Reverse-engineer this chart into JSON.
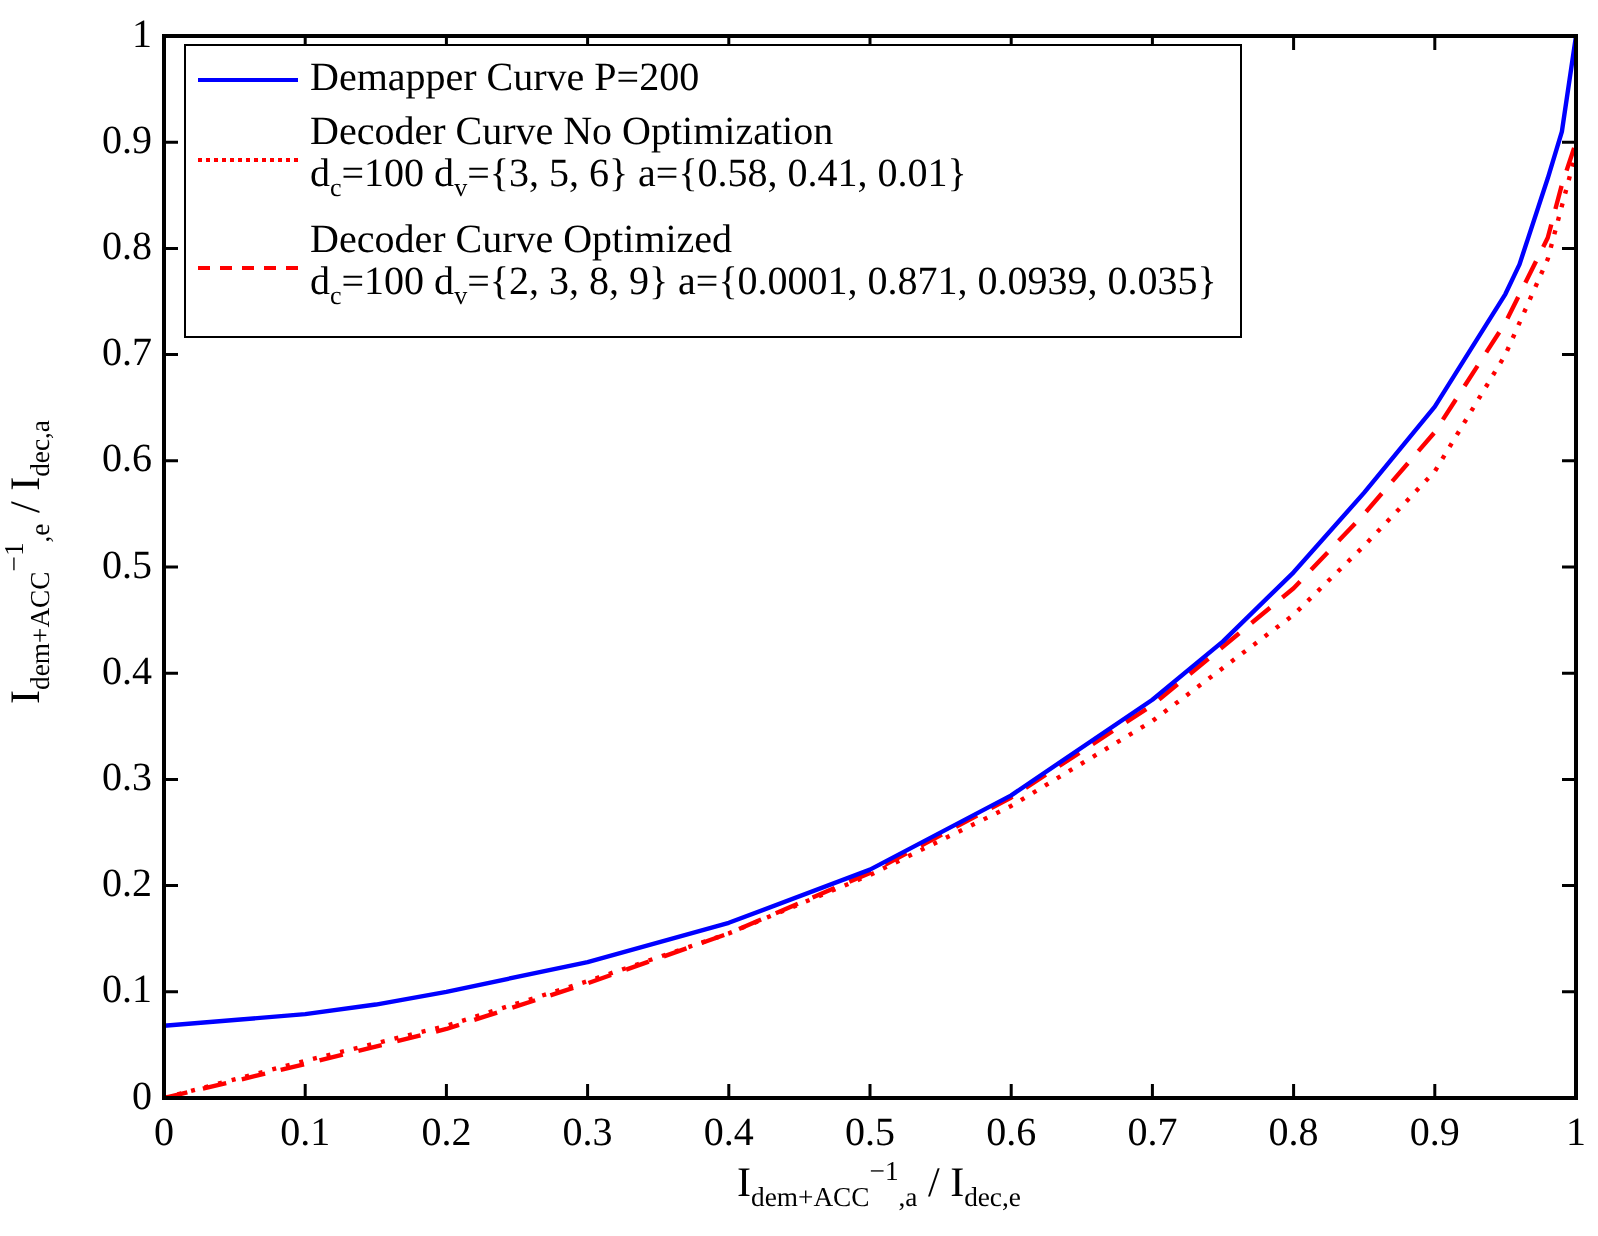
{
  "chart_data": {
    "type": "line",
    "xlabel": "I$_{dem+ACC}$$^{−1}$$_{,a}$ / I$_{dec,e}$",
    "ylabel": "I$_{dem+ACC}$$^{−1}$$_{,e}$ / I$_{dec,a}$",
    "xlim": [
      0,
      1
    ],
    "ylim": [
      0,
      1
    ],
    "xticks": [
      0,
      0.1,
      0.2,
      0.3,
      0.4,
      0.5,
      0.6,
      0.7,
      0.8,
      0.9,
      1
    ],
    "yticks": [
      0,
      0.1,
      0.2,
      0.3,
      0.4,
      0.5,
      0.6,
      0.7,
      0.8,
      0.9,
      1
    ],
    "legend": "top left",
    "marker": "none",
    "series": [
      {
        "name": "Demapper Curve P=200",
        "color": "#0000ff",
        "line_style": "solid",
        "x": [
          0,
          0.1,
          0.15,
          0.2,
          0.3,
          0.4,
          0.5,
          0.6,
          0.7,
          0.75,
          0.8,
          0.85,
          0.9,
          0.95,
          0.96,
          0.98,
          0.99,
          1
        ],
        "values": [
          0.068,
          0.079,
          0.088,
          0.1,
          0.128,
          0.165,
          0.215,
          0.285,
          0.375,
          0.43,
          0.495,
          0.57,
          0.651,
          0.757,
          0.785,
          0.866,
          0.91,
          1
        ]
      },
      {
        "name": "Decoder Curve No Optimization\nd$_{c}$=100 d$_{v}$={3, 5, 6} a={0.58, 0.41, 0.01}",
        "color": "#ff0000",
        "line_style": "dotted",
        "x": [
          0,
          0.1,
          0.2,
          0.3,
          0.4,
          0.5,
          0.6,
          0.7,
          0.8,
          0.85,
          0.9,
          0.95,
          0.98,
          1
        ],
        "values": [
          0,
          0.035,
          0.068,
          0.11,
          0.155,
          0.21,
          0.275,
          0.355,
          0.455,
          0.52,
          0.59,
          0.7,
          0.79,
          0.89
        ]
      },
      {
        "name": "Decoder Curve Optimized\nd$_{c}$=100 d$_{v}$={2, 3, 8, 9} a={0.0001, 0.871, 0.0939, 0.035}",
        "color": "#ff0000",
        "line_style": "dashed",
        "x": [
          0,
          0.1,
          0.2,
          0.3,
          0.4,
          0.5,
          0.6,
          0.7,
          0.8,
          0.85,
          0.9,
          0.95,
          0.98,
          0.99,
          1
        ],
        "values": [
          0,
          0.032,
          0.065,
          0.108,
          0.155,
          0.212,
          0.283,
          0.37,
          0.48,
          0.55,
          0.627,
          0.73,
          0.81,
          0.86,
          0.9
        ]
      }
    ]
  }
}
